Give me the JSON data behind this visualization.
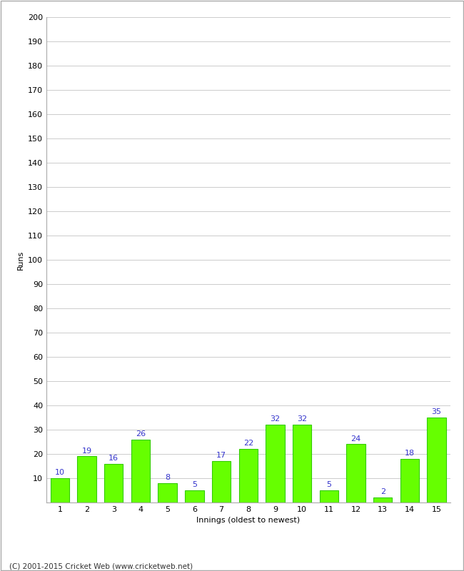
{
  "title": "",
  "xlabel": "Innings (oldest to newest)",
  "ylabel": "Runs",
  "categories": [
    "1",
    "2",
    "3",
    "4",
    "5",
    "6",
    "7",
    "8",
    "9",
    "10",
    "11",
    "12",
    "13",
    "14",
    "15"
  ],
  "values": [
    10,
    19,
    16,
    26,
    8,
    5,
    17,
    22,
    32,
    32,
    5,
    24,
    2,
    18,
    35
  ],
  "bar_color": "#66ff00",
  "bar_edge_color": "#33cc00",
  "label_color": "#3333cc",
  "ylim": [
    0,
    200
  ],
  "yticks": [
    0,
    10,
    20,
    30,
    40,
    50,
    60,
    70,
    80,
    90,
    100,
    110,
    120,
    130,
    140,
    150,
    160,
    170,
    180,
    190,
    200
  ],
  "background_color": "#ffffff",
  "grid_color": "#cccccc",
  "footer_text": "(C) 2001-2015 Cricket Web (www.cricketweb.net)",
  "label_fontsize": 8,
  "tick_fontsize": 8,
  "value_label_fontsize": 8,
  "border_color": "#aaaaaa"
}
